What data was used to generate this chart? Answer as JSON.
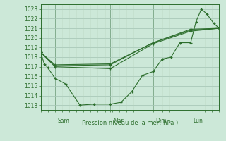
{
  "xlabel": "Pression niveau de la mer( hPa )",
  "bg_color": "#cce8d8",
  "line_color": "#2d6e2d",
  "grid_color_major": "#aacaba",
  "grid_color_minor": "#c0dcc8",
  "ylim": [
    1012.5,
    1023.5
  ],
  "yticks": [
    1013,
    1014,
    1015,
    1016,
    1017,
    1018,
    1019,
    1020,
    1021,
    1022,
    1023
  ],
  "xmin": 0,
  "xmax": 100,
  "vline_positions": [
    8,
    39,
    63,
    84
  ],
  "day_labels": [
    "Sam",
    "Mar",
    "Dim",
    "Lun"
  ],
  "series1_x": [
    0,
    2,
    4,
    8,
    14,
    22,
    30,
    39,
    45,
    51,
    57,
    63,
    68,
    73,
    78,
    84,
    87,
    90,
    93,
    97,
    100
  ],
  "series1_y": [
    1018.5,
    1017.3,
    1016.9,
    1015.8,
    1015.2,
    1013.0,
    1013.1,
    1013.1,
    1013.3,
    1014.4,
    1016.1,
    1016.5,
    1017.8,
    1018.0,
    1019.5,
    1019.5,
    1021.7,
    1023.0,
    1022.5,
    1021.5,
    1021.0
  ],
  "series2_x": [
    0,
    8,
    39,
    63,
    84,
    100
  ],
  "series2_y": [
    1018.5,
    1017.0,
    1016.8,
    1019.4,
    1020.7,
    1021.0
  ],
  "series3_x": [
    0,
    8,
    39,
    63,
    84,
    100
  ],
  "series3_y": [
    1018.5,
    1017.1,
    1017.2,
    1019.5,
    1020.8,
    1021.0
  ],
  "series4_x": [
    0,
    8,
    39,
    63,
    84,
    100
  ],
  "series4_y": [
    1018.5,
    1017.2,
    1017.3,
    1019.5,
    1020.9,
    1021.0
  ]
}
